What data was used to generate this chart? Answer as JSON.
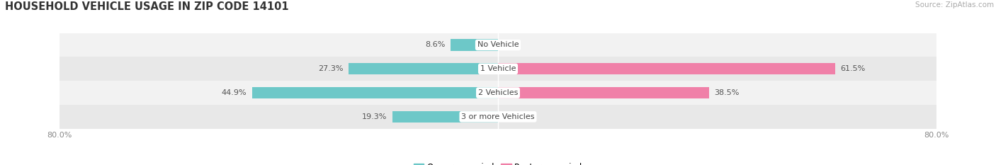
{
  "title": "HOUSEHOLD VEHICLE USAGE IN ZIP CODE 14101",
  "source": "Source: ZipAtlas.com",
  "categories": [
    "No Vehicle",
    "1 Vehicle",
    "2 Vehicles",
    "3 or more Vehicles"
  ],
  "owner_values": [
    8.6,
    27.3,
    44.9,
    19.3
  ],
  "renter_values": [
    0.0,
    61.5,
    38.5,
    0.0
  ],
  "owner_color": "#6dc8c8",
  "renter_color": "#f080a8",
  "row_bg_colors": [
    "#f2f2f2",
    "#e8e8e8",
    "#f2f2f2",
    "#e8e8e8"
  ],
  "xlim": [
    -80.0,
    80.0
  ],
  "bar_height": 0.48,
  "title_fontsize": 10.5,
  "label_fontsize": 8,
  "tick_fontsize": 8,
  "legend_fontsize": 8.5,
  "source_fontsize": 7.5,
  "title_color": "#333333",
  "label_color": "#555555",
  "cat_label_color": "#444444",
  "tick_color": "#888888"
}
